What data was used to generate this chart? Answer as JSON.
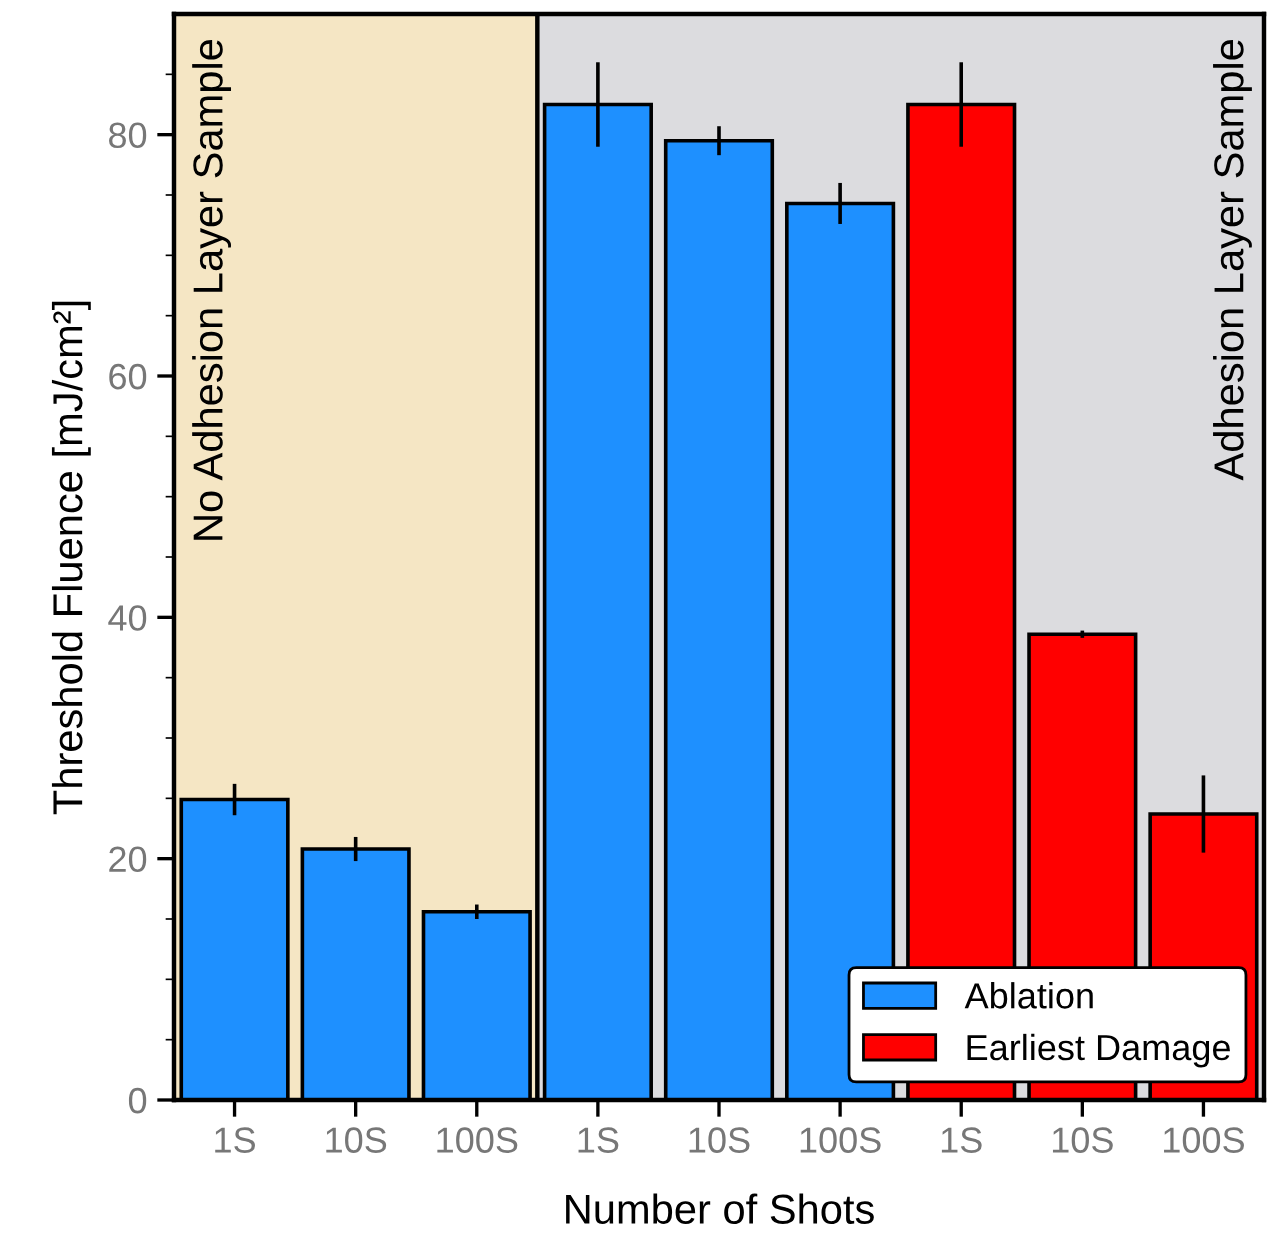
{
  "chart_data": {
    "type": "bar",
    "xlabel": "Number of Shots",
    "ylabel": "Threshold Fluence [mJ/cm²]",
    "categories": [
      "1S",
      "10S",
      "100S",
      "1S",
      "10S",
      "100S",
      "1S",
      "10S",
      "100S"
    ],
    "series": [
      {
        "name": "Ablation",
        "color": "#1e90ff",
        "values": [
          24.9,
          20.8,
          15.6,
          82.5,
          79.5,
          74.3,
          null,
          null,
          null
        ],
        "errors": [
          1.3,
          1.0,
          0.6,
          3.5,
          1.2,
          1.7,
          null,
          null,
          null
        ]
      },
      {
        "name": "Earliest Damage",
        "color": "#ff0000",
        "values": [
          null,
          null,
          null,
          null,
          null,
          null,
          82.5,
          38.6,
          23.7
        ],
        "errors": [
          null,
          null,
          null,
          null,
          null,
          null,
          3.5,
          0.3,
          3.2
        ]
      }
    ],
    "ylim": [
      0,
      90
    ],
    "yticks": [
      0,
      {
        "value": 5,
        "label": null
      },
      {
        "value": 10,
        "label": null
      },
      {
        "value": 15,
        "label": null
      },
      20,
      {
        "value": 25,
        "label": null
      },
      {
        "value": 30,
        "label": null
      },
      {
        "value": 35,
        "label": null
      },
      40,
      {
        "value": 45,
        "label": null
      },
      {
        "value": 50,
        "label": null
      },
      {
        "value": 55,
        "label": null
      },
      60,
      {
        "value": 65,
        "label": null
      },
      {
        "value": 70,
        "label": null
      },
      {
        "value": 75,
        "label": null
      },
      80,
      {
        "value": 85,
        "label": null
      }
    ],
    "annotations": [
      "No Adhesion Layer Sample",
      "Adhesion Layer Sample"
    ],
    "grid": false,
    "legend": "bottom right"
  }
}
